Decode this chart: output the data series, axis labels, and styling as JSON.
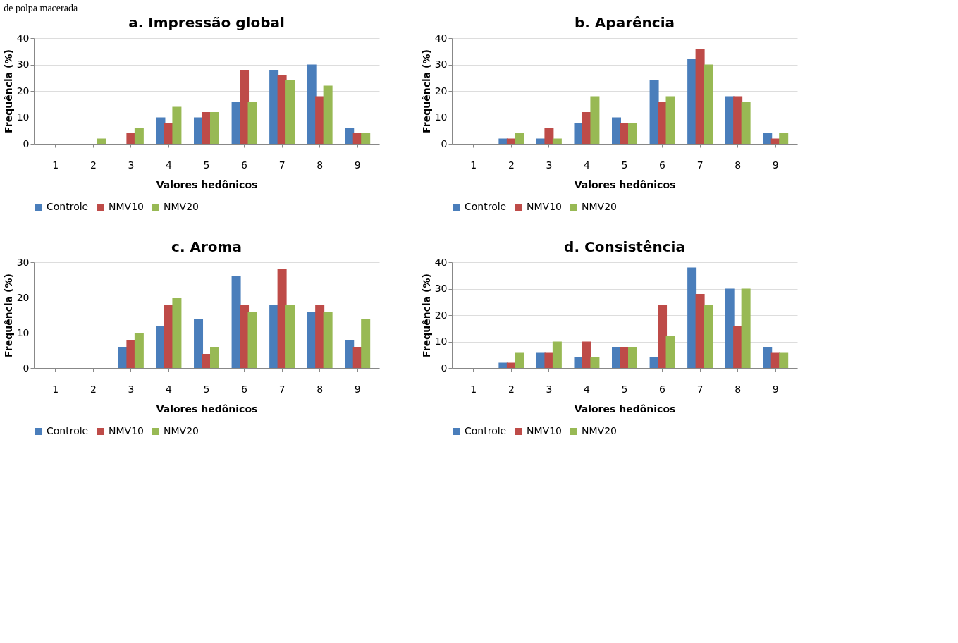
{
  "chart_data": [
    {
      "type": "bar",
      "title": "a. Impressão global",
      "xlabel": "Valores hedônicos",
      "ylabel": "Frequência (%)",
      "categories": [
        "1",
        "2",
        "3",
        "4",
        "5",
        "6",
        "7",
        "8",
        "9"
      ],
      "ylim": [
        0,
        40
      ],
      "yticks": [
        0,
        10,
        20,
        30,
        40
      ],
      "grid": "y",
      "legend": "bottom",
      "annotations": [
        "de polpa macerada"
      ],
      "series": [
        {
          "name": "Controle",
          "color": "#4a7ebb",
          "values": [
            0,
            0,
            0,
            10,
            10,
            16,
            28,
            30,
            6
          ]
        },
        {
          "name": "NMV10",
          "color": "#be4b48",
          "values": [
            0,
            0,
            4,
            8,
            12,
            28,
            26,
            18,
            4
          ]
        },
        {
          "name": "NMV20",
          "color": "#98b954",
          "values": [
            0,
            2,
            6,
            14,
            12,
            16,
            24,
            22,
            4
          ]
        }
      ]
    },
    {
      "type": "bar",
      "title": "b. Aparência",
      "xlabel": "Valores hedônicos",
      "ylabel": "Frequência (%)",
      "categories": [
        "1",
        "2",
        "3",
        "4",
        "5",
        "6",
        "7",
        "8",
        "9"
      ],
      "ylim": [
        0,
        40
      ],
      "yticks": [
        0,
        10,
        20,
        30,
        40
      ],
      "grid": "y",
      "legend": "bottom",
      "series": [
        {
          "name": "Controle",
          "color": "#4a7ebb",
          "values": [
            0,
            2,
            2,
            8,
            10,
            24,
            32,
            18,
            4
          ]
        },
        {
          "name": "NMV10",
          "color": "#be4b48",
          "values": [
            0,
            2,
            6,
            12,
            8,
            16,
            36,
            18,
            2
          ]
        },
        {
          "name": "NMV20",
          "color": "#98b954",
          "values": [
            0,
            4,
            2,
            18,
            8,
            18,
            30,
            16,
            4
          ]
        }
      ]
    },
    {
      "type": "bar",
      "title": "c. Aroma",
      "xlabel": "Valores hedônicos",
      "ylabel": "Frequência (%)",
      "categories": [
        "1",
        "2",
        "3",
        "4",
        "5",
        "6",
        "7",
        "8",
        "9"
      ],
      "ylim": [
        0,
        30
      ],
      "yticks": [
        0,
        10,
        20,
        30
      ],
      "grid": "y",
      "legend": "bottom",
      "series": [
        {
          "name": "Controle",
          "color": "#4a7ebb",
          "values": [
            0,
            0,
            6,
            12,
            14,
            26,
            18,
            16,
            8
          ]
        },
        {
          "name": "NMV10",
          "color": "#be4b48",
          "values": [
            0,
            0,
            8,
            18,
            4,
            18,
            28,
            18,
            6
          ]
        },
        {
          "name": "NMV20",
          "color": "#98b954",
          "values": [
            0,
            0,
            10,
            20,
            6,
            16,
            18,
            16,
            14
          ]
        }
      ]
    },
    {
      "type": "bar",
      "title": "d. Consistência",
      "xlabel": "Valores hedônicos",
      "ylabel": "Frequência (%)",
      "categories": [
        "1",
        "2",
        "3",
        "4",
        "5",
        "6",
        "7",
        "8",
        "9"
      ],
      "ylim": [
        0,
        40
      ],
      "yticks": [
        0,
        10,
        20,
        30,
        40
      ],
      "grid": "y",
      "legend": "bottom",
      "series": [
        {
          "name": "Controle",
          "color": "#4a7ebb",
          "values": [
            0,
            2,
            6,
            4,
            8,
            4,
            38,
            30,
            8
          ]
        },
        {
          "name": "NMV10",
          "color": "#be4b48",
          "values": [
            0,
            2,
            6,
            10,
            8,
            24,
            28,
            16,
            6
          ]
        },
        {
          "name": "NMV20",
          "color": "#98b954",
          "values": [
            0,
            6,
            10,
            4,
            8,
            12,
            24,
            30,
            6
          ]
        }
      ]
    }
  ]
}
